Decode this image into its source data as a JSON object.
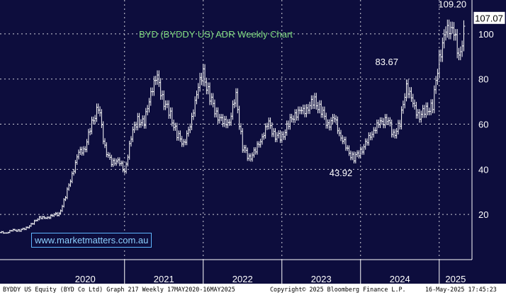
{
  "chart_data": {
    "type": "ohlc",
    "title": "BYD (BYDDY US) ADR Weekly Chart",
    "xlabel": "",
    "ylabel": "",
    "x_ticks": [
      "2020",
      "2021",
      "2022",
      "2023",
      "2024",
      "2025"
    ],
    "y_ticks": [
      20,
      40,
      60,
      80,
      100
    ],
    "ylim": [
      0,
      115
    ],
    "xlim": [
      "2019-06",
      "2025-06"
    ],
    "grid": true,
    "last_price": "107.07",
    "annotations": [
      {
        "text": "109.20",
        "date": "2025-03",
        "value": 109.2
      },
      {
        "text": "83.67",
        "date": "2024-05",
        "value": 83.67
      },
      {
        "text": "43.92",
        "date": "2023-10",
        "value": 43.92
      }
    ],
    "series": [
      {
        "x": [
          "2019-06",
          "2019-07",
          "2019-08",
          "2019-09",
          "2019-10",
          "2019-11",
          "2019-12",
          "2020-01",
          "2020-02",
          "2020-03",
          "2020-04",
          "2020-05",
          "2020-06",
          "2020-07",
          "2020-08",
          "2020-09",
          "2020-10",
          "2020-11",
          "2020-12",
          "2021-01",
          "2021-02",
          "2021-03",
          "2021-04",
          "2021-05",
          "2021-06",
          "2021-07",
          "2021-08",
          "2021-09",
          "2021-10",
          "2021-11",
          "2021-12",
          "2022-01",
          "2022-02",
          "2022-03",
          "2022-04",
          "2022-05",
          "2022-06",
          "2022-07",
          "2022-08",
          "2022-09",
          "2022-10",
          "2022-11",
          "2022-12",
          "2023-01",
          "2023-02",
          "2023-03",
          "2023-04",
          "2023-05",
          "2023-06",
          "2023-07",
          "2023-08",
          "2023-09",
          "2023-10",
          "2023-11",
          "2023-12",
          "2024-01",
          "2024-02",
          "2024-03",
          "2024-04",
          "2024-05",
          "2024-06",
          "2024-07",
          "2024-08",
          "2024-09",
          "2024-10",
          "2024-11",
          "2024-12",
          "2025-01",
          "2025-02",
          "2025-03",
          "2025-04",
          "2025-05"
        ],
        "values": [
          12,
          12,
          13,
          13,
          14,
          16,
          19,
          18,
          20,
          20,
          28,
          38,
          47,
          50,
          60,
          68,
          50,
          42,
          45,
          38,
          55,
          62,
          60,
          75,
          80,
          70,
          64,
          55,
          52,
          58,
          75,
          82,
          72,
          65,
          60,
          62,
          72,
          50,
          45,
          48,
          55,
          60,
          55,
          54,
          60,
          65,
          65,
          68,
          70,
          66,
          60,
          62,
          55,
          48,
          45,
          48,
          52,
          58,
          60,
          63,
          55,
          60,
          78,
          68,
          64,
          66,
          68,
          90,
          100,
          105,
          88,
          106
        ]
      }
    ]
  },
  "footer": {
    "left": "BYDDY US Equity (BYD Co Ltd) Graph 217  Weekly 17MAY2020-16MAY2025",
    "center": "Copyright© 2025 Bloomberg Finance L.P.",
    "right": "16-May-2025 17:45:23"
  },
  "site_label": "www.marketmatters.com.au"
}
